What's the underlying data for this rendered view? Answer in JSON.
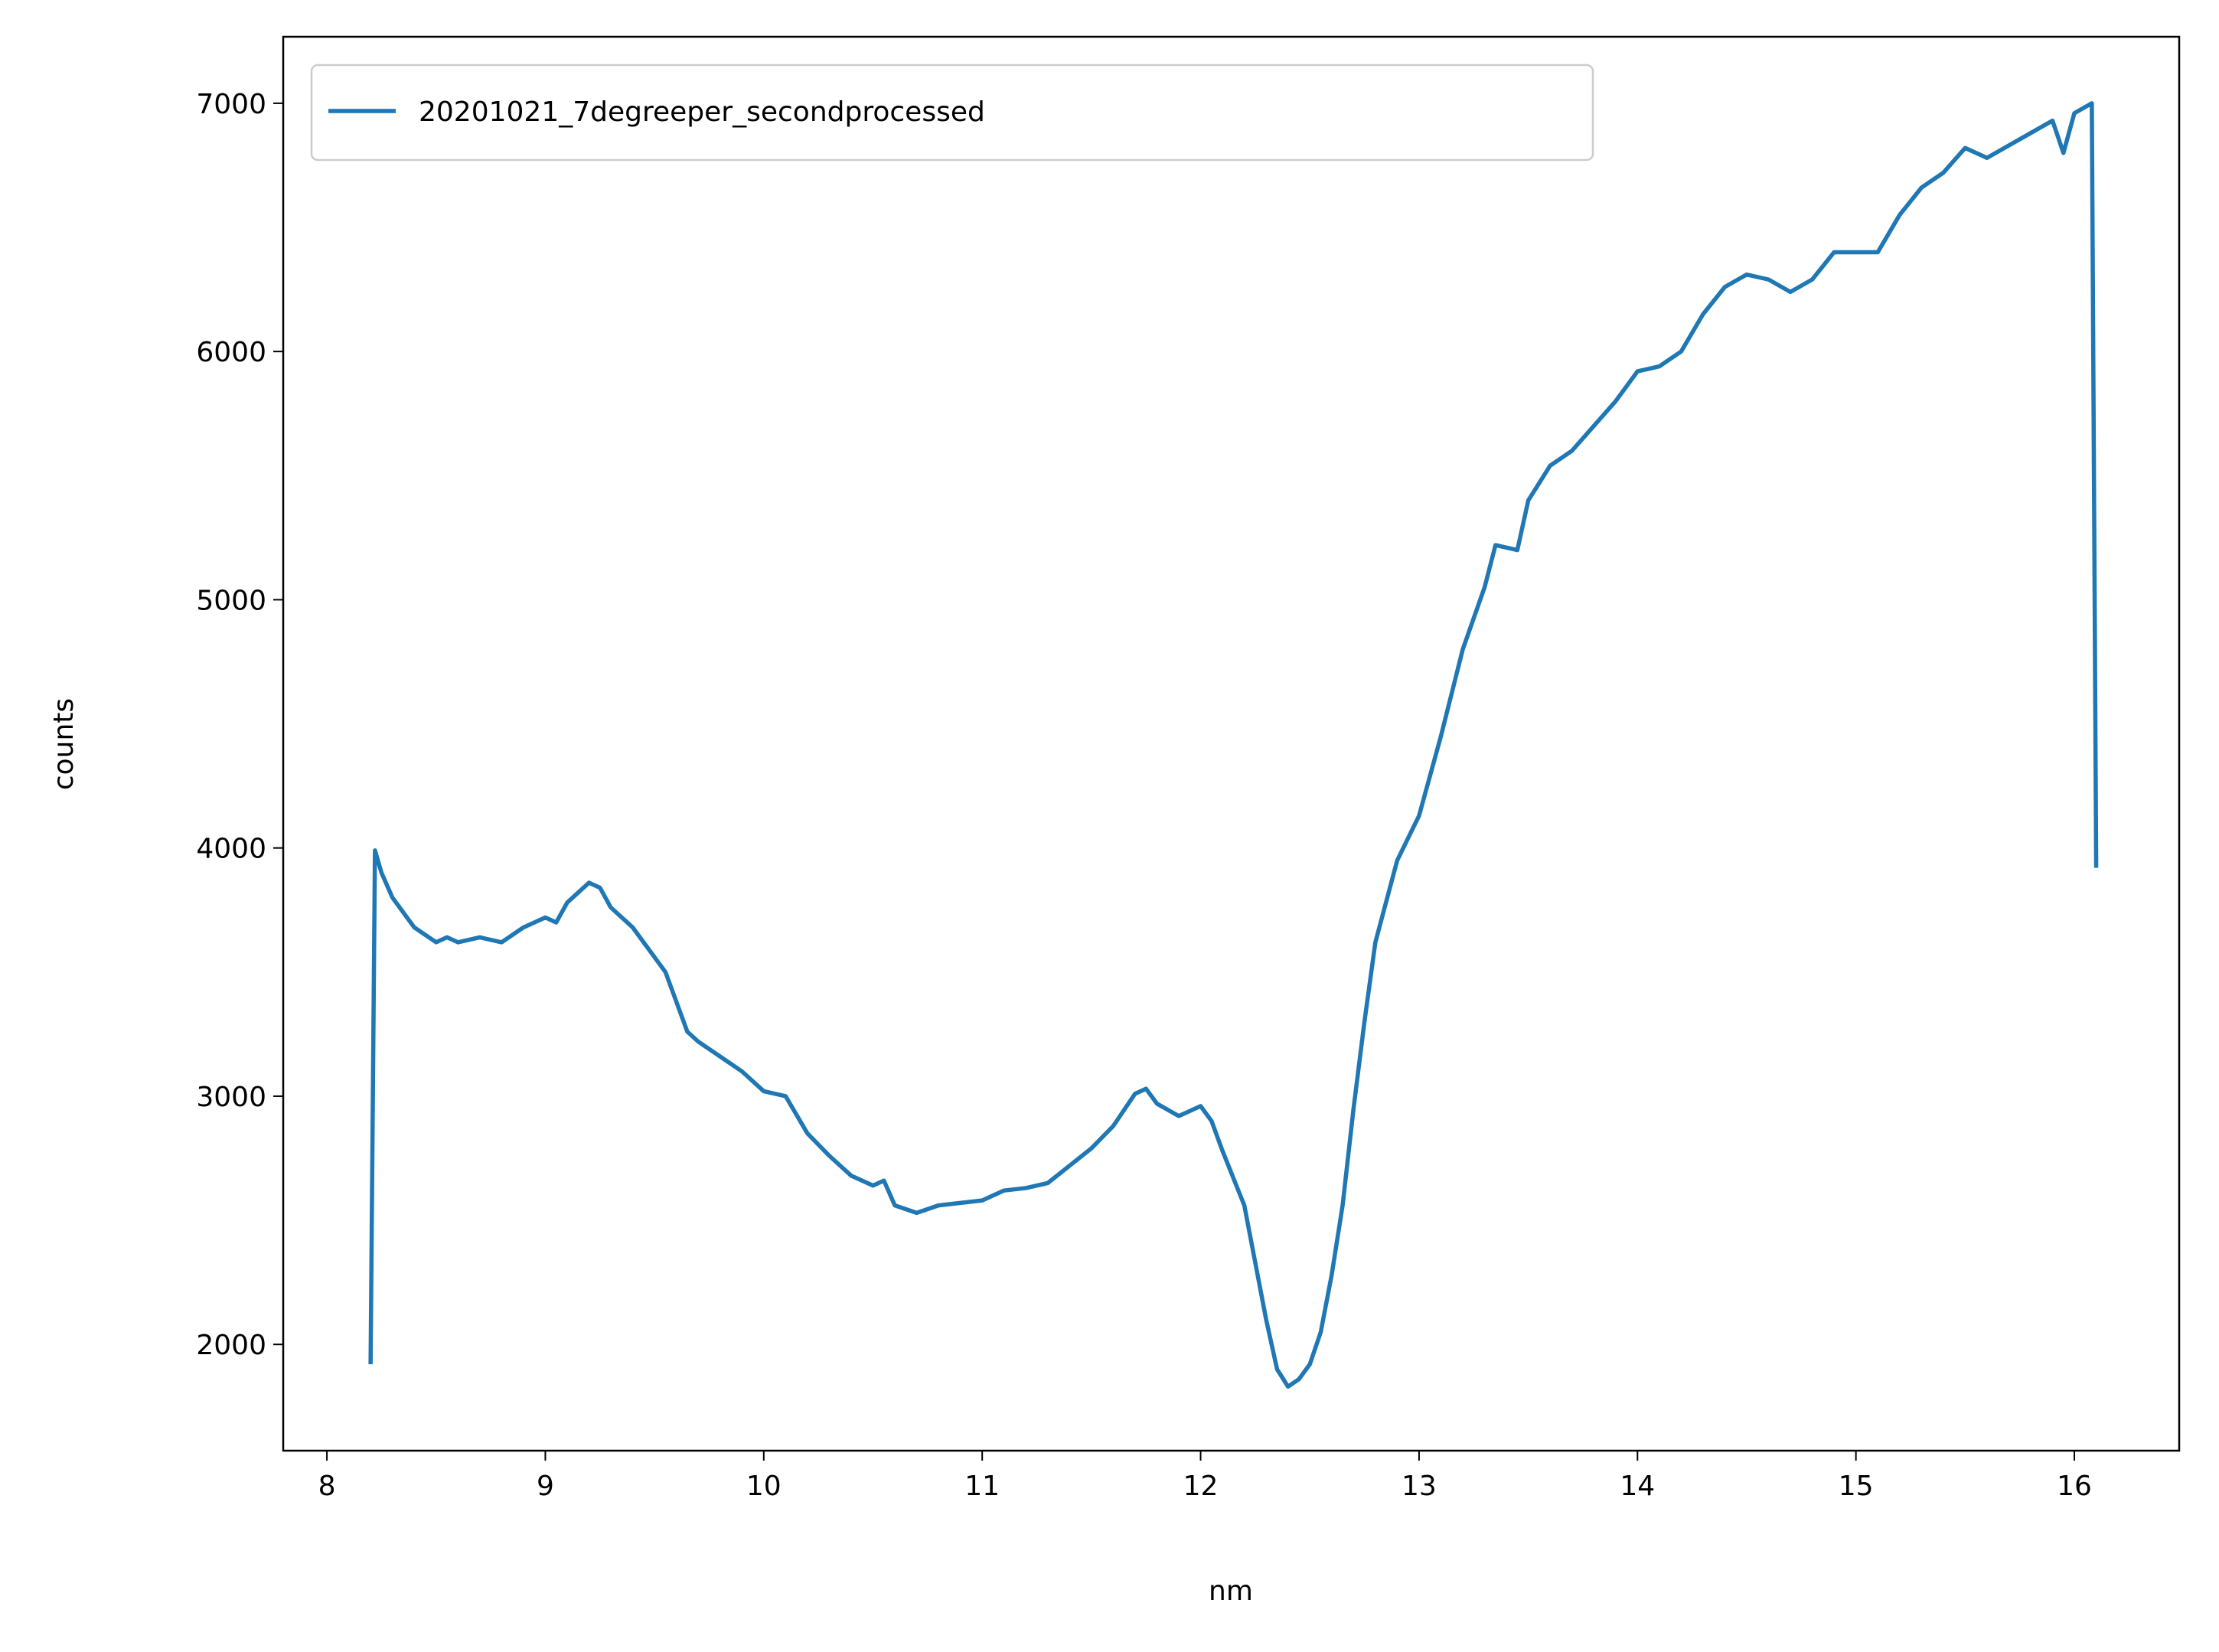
{
  "chart_data": {
    "type": "line",
    "xlabel": "nm",
    "ylabel": "counts",
    "xlim": [
      7.8,
      16.48
    ],
    "ylim": [
      1572,
      7268
    ],
    "xticks": [
      8,
      9,
      10,
      11,
      12,
      13,
      14,
      15,
      16
    ],
    "yticks": [
      2000,
      3000,
      4000,
      5000,
      6000,
      7000
    ],
    "legend": "upper left",
    "series": [
      {
        "name": "20201021_7degreeper_secondprocessed",
        "color": "#1f77b4",
        "x": [
          8.2,
          8.22,
          8.25,
          8.3,
          8.4,
          8.5,
          8.55,
          8.6,
          8.7,
          8.8,
          8.9,
          9.0,
          9.05,
          9.1,
          9.2,
          9.25,
          9.3,
          9.4,
          9.5,
          9.55,
          9.6,
          9.65,
          9.7,
          9.8,
          9.9,
          10.0,
          10.1,
          10.2,
          10.3,
          10.4,
          10.5,
          10.55,
          10.6,
          10.7,
          10.8,
          10.9,
          11.0,
          11.1,
          11.2,
          11.3,
          11.4,
          11.5,
          11.6,
          11.7,
          11.75,
          11.8,
          11.9,
          12.0,
          12.05,
          12.1,
          12.2,
          12.3,
          12.35,
          12.4,
          12.45,
          12.5,
          12.55,
          12.6,
          12.65,
          12.7,
          12.75,
          12.8,
          12.9,
          13.0,
          13.1,
          13.2,
          13.3,
          13.35,
          13.45,
          13.5,
          13.6,
          13.7,
          13.8,
          13.9,
          14.0,
          14.1,
          14.2,
          14.3,
          14.4,
          14.5,
          14.6,
          14.7,
          14.8,
          14.9,
          15.0,
          15.1,
          15.2,
          15.3,
          15.4,
          15.5,
          15.6,
          15.7,
          15.8,
          15.9,
          15.95,
          16.0,
          16.08,
          16.1
        ],
        "values": [
          1920,
          3990,
          3900,
          3800,
          3680,
          3620,
          3640,
          3620,
          3640,
          3620,
          3680,
          3720,
          3700,
          3780,
          3860,
          3840,
          3760,
          3680,
          3560,
          3500,
          3380,
          3260,
          3220,
          3160,
          3100,
          3020,
          3000,
          2850,
          2760,
          2680,
          2640,
          2660,
          2560,
          2530,
          2560,
          2570,
          2580,
          2620,
          2630,
          2650,
          2720,
          2790,
          2880,
          3010,
          3030,
          2970,
          2920,
          2960,
          2900,
          2780,
          2560,
          2100,
          1900,
          1830,
          1860,
          1920,
          2050,
          2280,
          2560,
          2950,
          3300,
          3620,
          3950,
          4130,
          4450,
          4800,
          5050,
          5220,
          5200,
          5400,
          5540,
          5600,
          5700,
          5800,
          5920,
          5940,
          6000,
          6150,
          6260,
          6310,
          6290,
          6240,
          6290,
          6400,
          6400,
          6400,
          6550,
          6660,
          6720,
          6820,
          6780,
          6830,
          6880,
          6930,
          6800,
          6960,
          7000,
          3920
        ]
      }
    ]
  }
}
